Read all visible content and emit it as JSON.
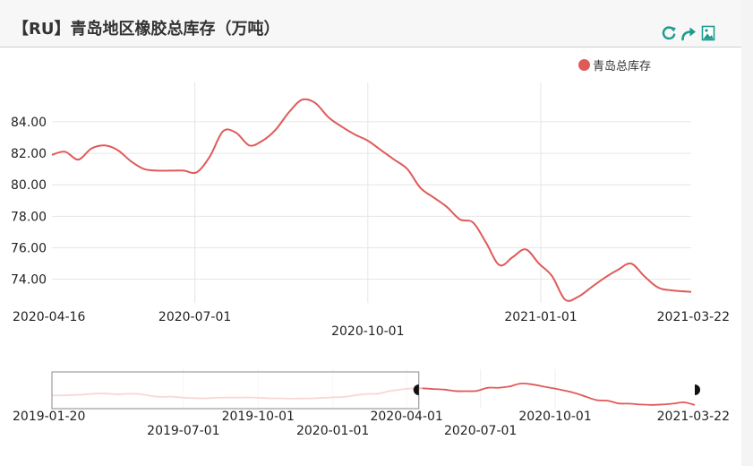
{
  "header": {
    "title": "【RU】青岛地区橡胶总库存（万吨）"
  },
  "toolbox": {
    "restore_icon": "restore-icon",
    "share_icon": "share-icon",
    "save_image_icon": "save-as-image-icon"
  },
  "colors": {
    "series": "#e05a5a",
    "grid": "#e6e6e6",
    "accent": "#1a9b8c"
  },
  "chart_data": {
    "type": "line",
    "legend": [
      "青岛总库存"
    ],
    "legend_position": "top-right",
    "grid": true,
    "ylim": [
      72.5,
      86.5
    ],
    "y_ticks": [
      "84.00",
      "82.00",
      "80.00",
      "78.00",
      "76.00",
      "74.00"
    ],
    "x_tick_labels": [
      "2020-04-16",
      "2020-07-01",
      "2020-10-01",
      "2021-01-01",
      "2021-03-22"
    ],
    "x_range": [
      "2020-04-16",
      "2021-03-22"
    ],
    "series": [
      {
        "name": "青岛总库存",
        "x": [
          "2020-04-16",
          "2020-04-23",
          "2020-04-30",
          "2020-05-07",
          "2020-05-14",
          "2020-05-21",
          "2020-05-28",
          "2020-06-04",
          "2020-06-11",
          "2020-06-18",
          "2020-06-25",
          "2020-07-02",
          "2020-07-09",
          "2020-07-16",
          "2020-07-23",
          "2020-07-30",
          "2020-08-06",
          "2020-08-13",
          "2020-08-20",
          "2020-08-27",
          "2020-09-03",
          "2020-09-10",
          "2020-09-17",
          "2020-09-24",
          "2020-10-01",
          "2020-10-08",
          "2020-10-15",
          "2020-10-22",
          "2020-10-29",
          "2020-11-05",
          "2020-11-12",
          "2020-11-19",
          "2020-11-26",
          "2020-12-03",
          "2020-12-10",
          "2020-12-17",
          "2020-12-24",
          "2020-12-31",
          "2021-01-07",
          "2021-01-14",
          "2021-01-21",
          "2021-01-28",
          "2021-02-04",
          "2021-02-11",
          "2021-02-18",
          "2021-02-25",
          "2021-03-04",
          "2021-03-11",
          "2021-03-22"
        ],
        "values": [
          81.9,
          82.1,
          81.6,
          82.3,
          82.5,
          82.2,
          81.5,
          81.0,
          80.9,
          80.9,
          80.9,
          80.8,
          81.8,
          83.4,
          83.3,
          82.5,
          82.8,
          83.5,
          84.6,
          85.4,
          85.2,
          84.3,
          83.7,
          83.2,
          82.8,
          82.2,
          81.6,
          81.0,
          79.8,
          79.2,
          78.6,
          77.8,
          77.6,
          76.3,
          74.9,
          75.4,
          75.9,
          75.0,
          74.2,
          72.7,
          72.9,
          73.5,
          74.1,
          74.6,
          75.0,
          74.2,
          73.5,
          73.3,
          73.2
        ]
      }
    ],
    "data_zoom": {
      "labels_row1": [
        "2019-01-20",
        "2019-10-01",
        "2020-04-01",
        "2020-10-01",
        "2021-03-22"
      ],
      "labels_row2": [
        "2019-07-01",
        "2020-01-01",
        "2020-07-01"
      ],
      "start": "2020-04-16",
      "end": "2021-03-22",
      "full_start": "2019-01-20",
      "full_end": "2021-03-22",
      "overview_values": [
        78.6,
        78.6,
        78.8,
        79.1,
        79.6,
        79.6,
        79.2,
        79.5,
        79.4,
        78.4,
        77.8,
        77.9,
        77.4,
        77.1,
        77.0,
        77.3,
        77.4,
        77.4,
        77.5,
        77.3,
        77.0,
        77.0,
        76.8,
        76.9,
        77.0,
        77.3,
        77.6,
        77.9,
        78.8,
        79.4,
        79.6,
        81.0,
        81.8,
        82.4,
        82.5,
        82.1,
        81.8,
        81.0,
        80.9,
        81.1,
        82.8,
        82.8,
        83.5,
        85.1,
        84.7,
        83.6,
        82.5,
        81.3,
        79.9,
        77.9,
        76.0,
        75.7,
        74.2,
        74.1,
        73.6,
        73.4,
        73.6,
        74.1,
        74.8,
        73.3
      ]
    }
  }
}
